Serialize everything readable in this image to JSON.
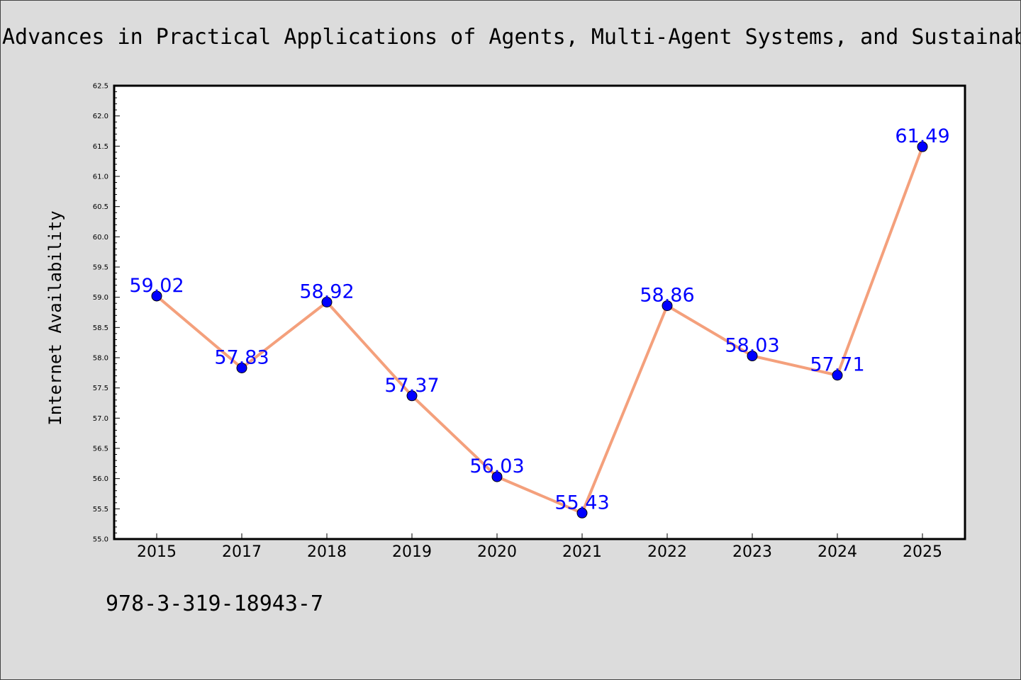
{
  "title": "Advances in Practical Applications of Agents, Multi-Agent Systems, and Sustainab",
  "footer_text": "978-3-319-18943-7",
  "colors": {
    "background": "#dcdcdc",
    "plot_background": "#ffffff",
    "line": "#f4a07c",
    "marker": "#0000ff",
    "data_label": "#0000ff"
  },
  "chart_data": {
    "type": "line",
    "title": "Advances in Practical Applications of Agents, Multi-Agent Systems, and Sustainab",
    "xlabel": "",
    "ylabel": "Internet Availability",
    "categories": [
      "2015",
      "2017",
      "2018",
      "2019",
      "2020",
      "2021",
      "2022",
      "2023",
      "2024",
      "2025"
    ],
    "series": [
      {
        "values": [
          59.02,
          57.83,
          58.92,
          57.37,
          56.03,
          55.43,
          58.86,
          58.03,
          57.71,
          61.49
        ],
        "labels": [
          "59.02",
          "57.83",
          "58.92",
          "57.37",
          "56.03",
          "55.43",
          "58.86",
          "58.03",
          "57.71",
          "61.49"
        ]
      }
    ],
    "ylim": [
      55.0,
      62.5
    ],
    "yticks": [
      "55.0",
      "55.5",
      "56.0",
      "56.5",
      "57.0",
      "57.5",
      "58.0",
      "58.5",
      "59.0",
      "59.5",
      "60.0",
      "60.5",
      "61.0",
      "61.5",
      "62.0",
      "62.5"
    ],
    "grid": false,
    "legend": "none"
  }
}
